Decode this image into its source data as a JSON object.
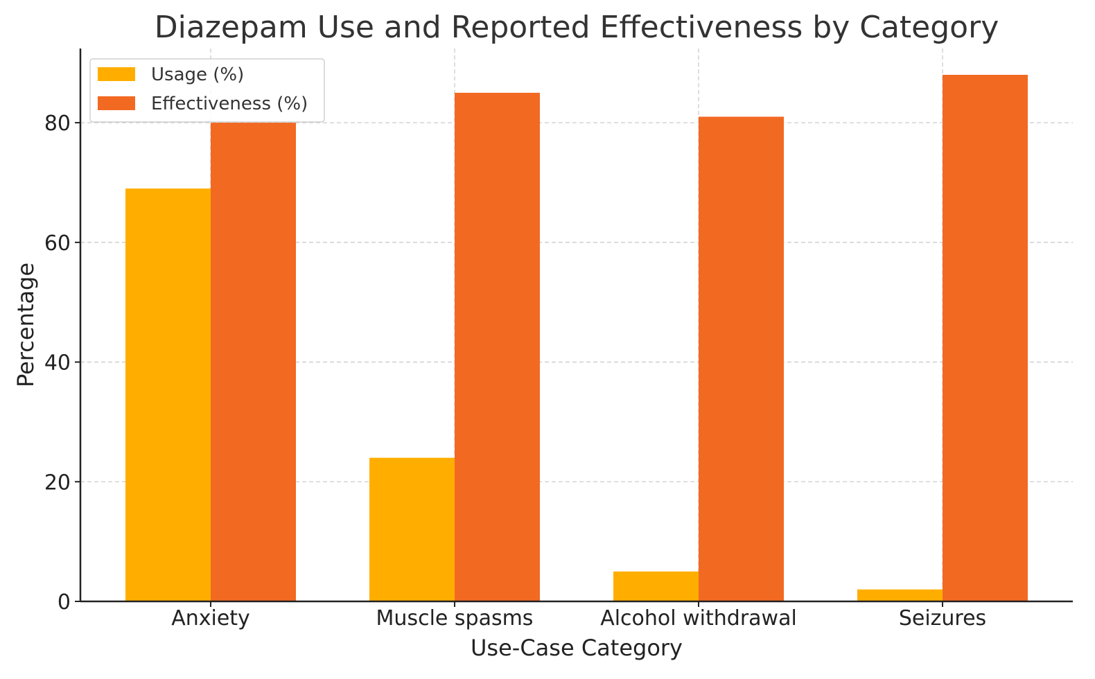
{
  "chart_data": {
    "type": "bar",
    "title": "Diazepam Use and Reported Effectiveness by Category",
    "xlabel": "Use-Case Category",
    "ylabel": "Percentage",
    "categories": [
      "Anxiety",
      "Muscle spasms",
      "Alcohol withdrawal",
      "Seizures"
    ],
    "series": [
      {
        "name": "Usage (%)",
        "values": [
          69,
          24,
          5,
          2
        ],
        "color": "#FFAE00"
      },
      {
        "name": "Effectiveness (%)",
        "values": [
          80,
          85,
          81,
          88
        ],
        "color": "#F26922"
      }
    ],
    "ylim": [
      0,
      92.4
    ],
    "yticks": [
      0,
      20,
      40,
      60,
      80
    ],
    "grid": true,
    "legend_position": "top-left"
  }
}
